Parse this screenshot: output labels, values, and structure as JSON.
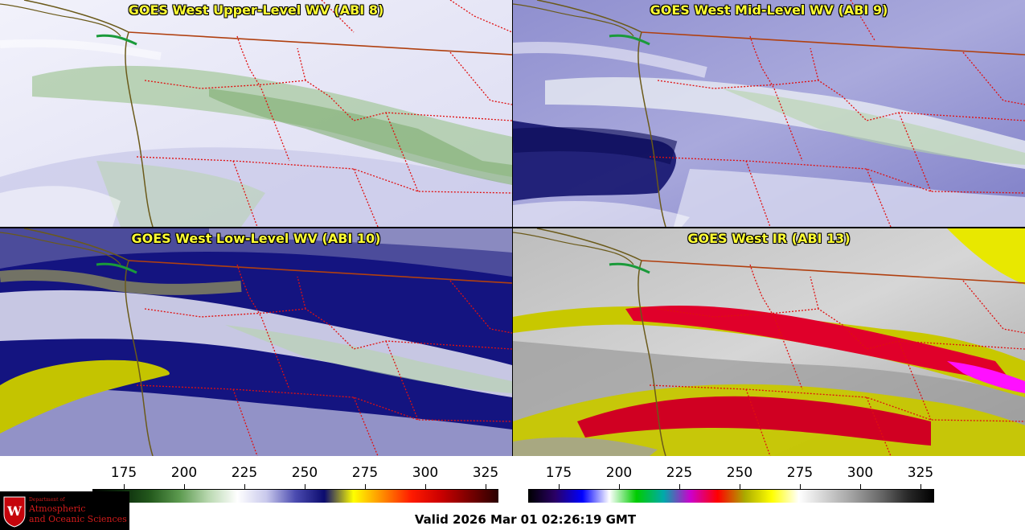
{
  "panels": [
    {
      "title": "GOES West Upper-Level WV (ABI 8)",
      "scheme": "wv-upper"
    },
    {
      "title": "GOES West Mid-Level WV (ABI 9)",
      "scheme": "wv-mid"
    },
    {
      "title": "GOES West Low-Level WV (ABI 10)",
      "scheme": "wv-low"
    },
    {
      "title": "GOES West IR (ABI 13)",
      "scheme": "ir"
    }
  ],
  "colorbar_wv": {
    "ticks": [
      "175",
      "200",
      "225",
      "250",
      "275",
      "300",
      "325"
    ],
    "colors": [
      "#000000",
      "#0b2a0b",
      "#245a1d",
      "#5c9a4f",
      "#b9d8b0",
      "#ffffff",
      "#c9c9ec",
      "#4b4bb0",
      "#0b0b6e",
      "#ffff00",
      "#ff8c00",
      "#ff1a00",
      "#cc0000",
      "#7a0000",
      "#2a0000"
    ]
  },
  "colorbar_ir": {
    "ticks": [
      "175",
      "200",
      "225",
      "250",
      "275",
      "300",
      "325"
    ],
    "colors": [
      "#000000",
      "#2a0066",
      "#0000ff",
      "#ffffff",
      "#00cc00",
      "#00aaaa",
      "#cc00cc",
      "#ff0000",
      "#aaaa00",
      "#ffff00",
      "#ffffff",
      "#d0d0d0",
      "#a0a0a0",
      "#6a6a6a",
      "#2a2a2a",
      "#000000"
    ]
  },
  "logo": {
    "line1": "Department of",
    "line2": "Atmospheric",
    "line3": "and Oceanic Sciences"
  },
  "valid_text": "Valid 2026 Mar 01 02:26:19 GMT",
  "colors": {
    "title": "#ffff33",
    "coast": "#6b5a1a",
    "border_intl": "#b04010",
    "border_state": "#e01010"
  }
}
